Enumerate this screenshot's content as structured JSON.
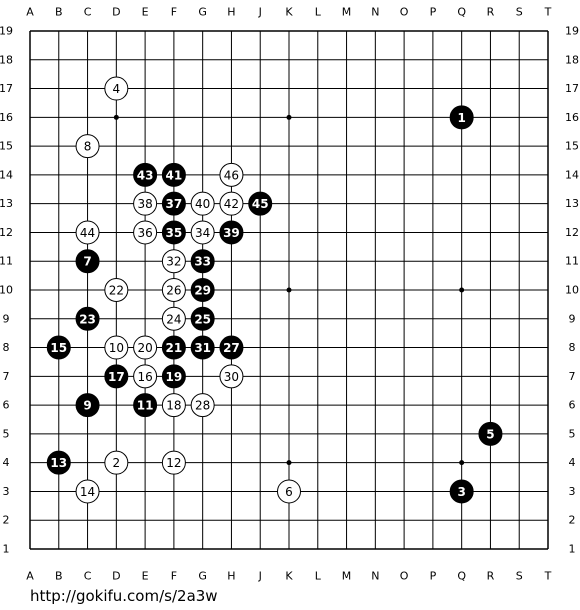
{
  "board": {
    "columns": [
      "A",
      "B",
      "C",
      "D",
      "E",
      "F",
      "G",
      "H",
      "J",
      "K",
      "L",
      "M",
      "N",
      "O",
      "P",
      "Q",
      "R",
      "S",
      "T"
    ],
    "rows": [
      "19",
      "18",
      "17",
      "16",
      "15",
      "14",
      "13",
      "12",
      "11",
      "10",
      "9",
      "8",
      "7",
      "6",
      "5",
      "4",
      "3",
      "2",
      "1"
    ],
    "star_points": [
      "D16",
      "K16",
      "Q16",
      "D10",
      "K10",
      "Q10",
      "D4",
      "K4",
      "Q4"
    ],
    "stones": [
      {
        "label": "1",
        "color": "black",
        "point": "Q16"
      },
      {
        "label": "2",
        "color": "white",
        "point": "D4"
      },
      {
        "label": "3",
        "color": "black",
        "point": "Q3"
      },
      {
        "label": "4",
        "color": "white",
        "point": "D17"
      },
      {
        "label": "5",
        "color": "black",
        "point": "R5"
      },
      {
        "label": "6",
        "color": "white",
        "point": "K3"
      },
      {
        "label": "7",
        "color": "black",
        "point": "C11"
      },
      {
        "label": "8",
        "color": "white",
        "point": "C15"
      },
      {
        "label": "9",
        "color": "black",
        "point": "C6"
      },
      {
        "label": "10",
        "color": "white",
        "point": "D8"
      },
      {
        "label": "11",
        "color": "black",
        "point": "E6"
      },
      {
        "label": "12",
        "color": "white",
        "point": "F4"
      },
      {
        "label": "13",
        "color": "black",
        "point": "B4"
      },
      {
        "label": "14",
        "color": "white",
        "point": "C3"
      },
      {
        "label": "15",
        "color": "black",
        "point": "B8"
      },
      {
        "label": "16",
        "color": "white",
        "point": "E7"
      },
      {
        "label": "17",
        "color": "black",
        "point": "D7"
      },
      {
        "label": "18",
        "color": "white",
        "point": "F6"
      },
      {
        "label": "19",
        "color": "black",
        "point": "F7"
      },
      {
        "label": "20",
        "color": "white",
        "point": "E8"
      },
      {
        "label": "21",
        "color": "black",
        "point": "F8"
      },
      {
        "label": "22",
        "color": "white",
        "point": "D10"
      },
      {
        "label": "23",
        "color": "black",
        "point": "C9"
      },
      {
        "label": "24",
        "color": "white",
        "point": "F9"
      },
      {
        "label": "25",
        "color": "black",
        "point": "G9"
      },
      {
        "label": "26",
        "color": "white",
        "point": "F10"
      },
      {
        "label": "27",
        "color": "black",
        "point": "H8"
      },
      {
        "label": "28",
        "color": "white",
        "point": "G6"
      },
      {
        "label": "29",
        "color": "black",
        "point": "G10"
      },
      {
        "label": "30",
        "color": "white",
        "point": "H7"
      },
      {
        "label": "31",
        "color": "black",
        "point": "G8"
      },
      {
        "label": "32",
        "color": "white",
        "point": "F11"
      },
      {
        "label": "33",
        "color": "black",
        "point": "G11"
      },
      {
        "label": "34",
        "color": "white",
        "point": "G12"
      },
      {
        "label": "35",
        "color": "black",
        "point": "F12"
      },
      {
        "label": "36",
        "color": "white",
        "point": "E12"
      },
      {
        "label": "37",
        "color": "black",
        "point": "F13"
      },
      {
        "label": "38",
        "color": "white",
        "point": "E13"
      },
      {
        "label": "39",
        "color": "black",
        "point": "H12"
      },
      {
        "label": "40",
        "color": "white",
        "point": "G13"
      },
      {
        "label": "41",
        "color": "black",
        "point": "F14"
      },
      {
        "label": "42",
        "color": "white",
        "point": "H13"
      },
      {
        "label": "43",
        "color": "black",
        "point": "E14"
      },
      {
        "label": "44",
        "color": "white",
        "point": "C12"
      },
      {
        "label": "45",
        "color": "black",
        "point": "J13"
      },
      {
        "label": "46",
        "color": "white",
        "point": "H14"
      }
    ]
  },
  "footer": {
    "url": "http://gokifu.com/s/2a3w"
  }
}
